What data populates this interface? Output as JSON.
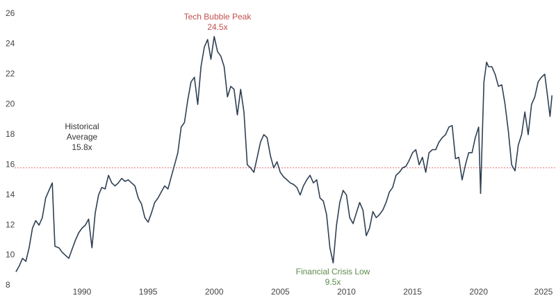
{
  "chart_data": {
    "type": "line",
    "x": [
      1985.0,
      1985.25,
      1985.5,
      1985.75,
      1986.0,
      1986.25,
      1986.5,
      1986.75,
      1987.0,
      1987.25,
      1987.5,
      1987.75,
      1987.95,
      1988.25,
      1988.5,
      1988.75,
      1989.0,
      1989.25,
      1989.5,
      1989.75,
      1990.0,
      1990.25,
      1990.5,
      1990.75,
      1991.0,
      1991.25,
      1991.5,
      1991.75,
      1992.0,
      1992.25,
      1992.5,
      1992.75,
      1993.0,
      1993.25,
      1993.5,
      1993.75,
      1994.0,
      1994.25,
      1994.5,
      1994.75,
      1995.0,
      1995.25,
      1995.5,
      1995.75,
      1996.0,
      1996.25,
      1996.5,
      1996.75,
      1997.0,
      1997.25,
      1997.5,
      1997.75,
      1998.0,
      1998.25,
      1998.5,
      1998.75,
      1999.0,
      1999.25,
      1999.5,
      1999.75,
      2000.0,
      2000.25,
      2000.5,
      2000.75,
      2001.0,
      2001.25,
      2001.5,
      2001.75,
      2002.0,
      2002.25,
      2002.5,
      2002.75,
      2003.0,
      2003.25,
      2003.5,
      2003.75,
      2004.0,
      2004.25,
      2004.5,
      2004.75,
      2005.0,
      2005.25,
      2005.5,
      2005.75,
      2006.0,
      2006.25,
      2006.5,
      2006.75,
      2007.0,
      2007.25,
      2007.5,
      2007.75,
      2008.0,
      2008.25,
      2008.5,
      2008.75,
      2009.0,
      2009.25,
      2009.5,
      2009.75,
      2010.0,
      2010.25,
      2010.5,
      2010.75,
      2011.0,
      2011.25,
      2011.5,
      2011.75,
      2012.0,
      2012.25,
      2012.5,
      2012.75,
      2013.0,
      2013.25,
      2013.5,
      2013.75,
      2014.0,
      2014.25,
      2014.5,
      2014.75,
      2015.0,
      2015.25,
      2015.5,
      2015.75,
      2016.0,
      2016.25,
      2016.5,
      2016.75,
      2017.0,
      2017.25,
      2017.5,
      2017.75,
      2018.0,
      2018.25,
      2018.5,
      2018.75,
      2019.0,
      2019.25,
      2019.5,
      2019.75,
      2020.0,
      2020.15,
      2020.4,
      2020.6,
      2020.75,
      2021.0,
      2021.25,
      2021.5,
      2021.75,
      2022.0,
      2022.25,
      2022.5,
      2022.75,
      2023.0,
      2023.25,
      2023.5,
      2023.75,
      2024.0,
      2024.25,
      2024.5,
      2024.75,
      2025.0,
      2025.25,
      2025.4,
      2025.55
    ],
    "values": [
      8.9,
      9.3,
      9.8,
      9.6,
      10.5,
      11.8,
      12.3,
      12.0,
      12.5,
      13.8,
      14.3,
      14.8,
      10.6,
      10.5,
      10.2,
      10.0,
      9.8,
      10.4,
      11.0,
      11.5,
      11.8,
      12.0,
      12.4,
      10.5,
      12.8,
      14.0,
      14.5,
      14.4,
      15.3,
      14.8,
      14.6,
      14.8,
      15.1,
      14.9,
      15.0,
      14.8,
      14.6,
      13.8,
      13.4,
      12.5,
      12.2,
      12.8,
      13.5,
      13.8,
      14.2,
      14.6,
      14.4,
      15.2,
      16.0,
      16.8,
      18.5,
      18.8,
      20.3,
      21.5,
      21.8,
      20.0,
      22.5,
      23.8,
      24.3,
      23.0,
      24.5,
      23.5,
      23.2,
      22.5,
      20.5,
      21.2,
      21.0,
      19.3,
      21.0,
      19.5,
      16.0,
      15.8,
      15.5,
      16.5,
      17.5,
      18.0,
      17.8,
      16.6,
      15.8,
      16.2,
      15.5,
      15.2,
      15.0,
      14.8,
      14.7,
      14.5,
      14.0,
      14.6,
      15.0,
      15.3,
      14.8,
      15.0,
      13.8,
      13.6,
      12.7,
      10.5,
      9.5,
      12.0,
      13.5,
      14.3,
      14.0,
      12.5,
      12.1,
      12.8,
      13.5,
      13.0,
      11.3,
      11.8,
      12.9,
      12.5,
      12.7,
      13.0,
      13.5,
      14.2,
      14.5,
      15.3,
      15.5,
      15.8,
      15.9,
      16.3,
      16.8,
      17.0,
      16.0,
      16.5,
      15.5,
      16.8,
      17.0,
      17.0,
      17.5,
      17.8,
      18.0,
      18.5,
      18.6,
      16.4,
      16.5,
      15.0,
      16.0,
      16.8,
      16.8,
      17.8,
      18.5,
      14.1,
      21.5,
      22.8,
      22.5,
      22.5,
      22.0,
      21.2,
      21.3,
      20.0,
      18.2,
      16.0,
      15.6,
      17.3,
      18.0,
      19.5,
      18.0,
      20.0,
      20.5,
      21.5,
      21.8,
      22.0,
      20.3,
      19.2,
      20.6
    ],
    "color": "#2e3f52",
    "xlim": [
      1984.9,
      2025.8
    ],
    "ylim": [
      8,
      26
    ],
    "xticks": [
      1990,
      1995,
      2000,
      2005,
      2010,
      2015,
      2020,
      2025
    ],
    "yticks": [
      8,
      10,
      12,
      14,
      16,
      18,
      20,
      22,
      24,
      26
    ],
    "grid": false,
    "reference_line": {
      "value": 15.8,
      "color": "#e07070"
    },
    "annotations": [
      {
        "lines": [
          "Tech Bubble Peak",
          "24.5x"
        ],
        "color": "#c0504d"
      },
      {
        "lines": [
          "Historical",
          "Average",
          "15.8x"
        ],
        "color": "#333333"
      },
      {
        "lines": [
          "Financial Crisis Low",
          "9.5x"
        ],
        "color": "#5a8a4a"
      }
    ]
  }
}
